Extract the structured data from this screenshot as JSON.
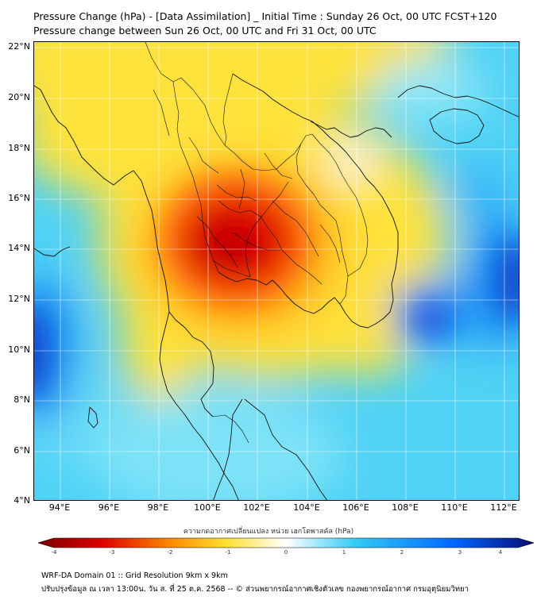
{
  "title_line1": "Pressure Change (hPa) - [Data Assimilation] _ Initial Time : Sunday 26 Oct, 00 UTC FCST+120",
  "title_line2": "Pressure change between Sun 26 Oct, 00 UTC and Fri 31 Oct, 00 UTC",
  "lat_labels": [
    "22°N",
    "20°N",
    "18°N",
    "16°N",
    "14°N",
    "12°N",
    "10°N",
    "8°N",
    "6°N",
    "4°N"
  ],
  "lon_labels": [
    "94°E",
    "96°E",
    "98°E",
    "100°E",
    "102°E",
    "104°E",
    "106°E",
    "108°E",
    "110°E",
    "112°E"
  ],
  "colorbar": {
    "title": "ความกดอากาศเปลี่ยนแปลง หน่วย เฮกโตพาสคัล (hPa)",
    "ticks": [
      "-4",
      "-3",
      "-2",
      "-1",
      "0",
      "1",
      "2",
      "3",
      "4"
    ],
    "min": -4,
    "max": 4,
    "colors": {
      "neg_dark": "#7a0000",
      "neg": "#e00000",
      "orange": "#ff8c00",
      "yellow": "#ffe033",
      "zero": "#ffffff",
      "cyan": "#33ccf5",
      "blue": "#0066ff",
      "pos_dark": "#0a0a78"
    }
  },
  "footer_line1": "WRF-DA Domain 01 :: Grid Resolution 9km x 9km",
  "footer_line2": "ปรับปรุงข้อมูล ณ เวลา 13:00น. วัน ส. ที่ 25 ต.ค. 2568 -- © ส่วนพยากรณ์อากาศเชิงตัวเลข กองพยากรณ์อากาศ กรมอุตุนิยมวิทยา"
}
